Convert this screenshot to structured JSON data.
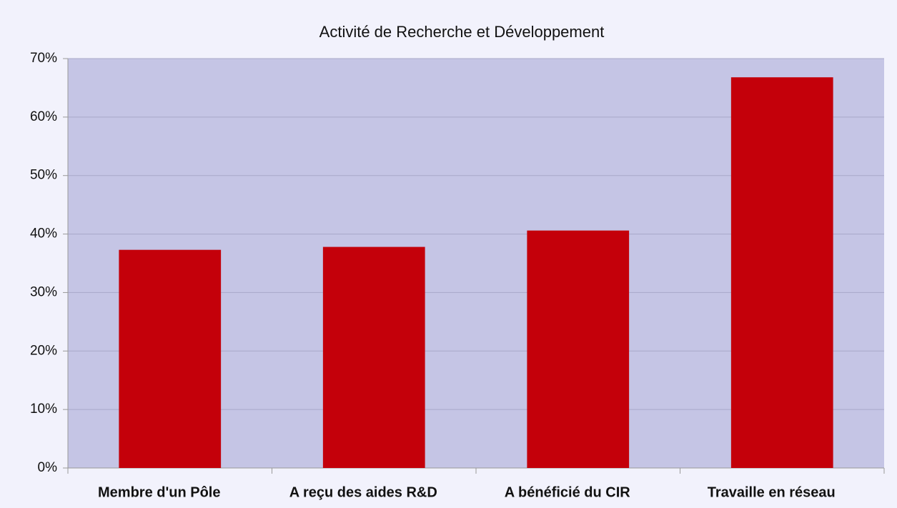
{
  "chart_data": {
    "type": "bar",
    "title": "Activité de Recherche et Développement",
    "categories": [
      "Membre d'un Pôle",
      "A reçu des aides R&D",
      "A bénéficié du CIR",
      "Travaille en réseau"
    ],
    "values": [
      37.3,
      37.8,
      40.6,
      66.8
    ],
    "color": "#c4000a",
    "ylim": [
      0,
      70
    ],
    "yticks": [
      {
        "value": 0,
        "label": "0%"
      },
      {
        "value": 10,
        "label": "10%"
      },
      {
        "value": 20,
        "label": "20%"
      },
      {
        "value": 30,
        "label": "30%"
      },
      {
        "value": 40,
        "label": "40%"
      },
      {
        "value": 50,
        "label": "50%"
      },
      {
        "value": 60,
        "label": "60%"
      },
      {
        "value": 70,
        "label": "70%"
      }
    ],
    "grid": true
  }
}
